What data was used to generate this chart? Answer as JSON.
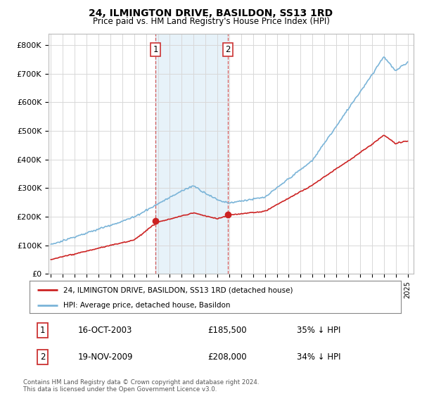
{
  "title": "24, ILMINGTON DRIVE, BASILDON, SS13 1RD",
  "subtitle": "Price paid vs. HM Land Registry's House Price Index (HPI)",
  "bg_color": "#ffffff",
  "plot_bg_color": "#ffffff",
  "grid_color": "#d8d8d8",
  "hpi_color": "#7ab4d8",
  "price_color": "#cc2222",
  "sale1_date": 2003.79,
  "sale1_price": 185500,
  "sale2_date": 2009.88,
  "sale2_price": 208000,
  "ylim": [
    0,
    840000
  ],
  "yticks": [
    0,
    100000,
    200000,
    300000,
    400000,
    500000,
    600000,
    700000,
    800000
  ],
  "ytick_labels": [
    "£0",
    "£100K",
    "£200K",
    "£300K",
    "£400K",
    "£500K",
    "£600K",
    "£700K",
    "£800K"
  ],
  "xmin": 1994.8,
  "xmax": 2025.5,
  "legend_line1": "24, ILMINGTON DRIVE, BASILDON, SS13 1RD (detached house)",
  "legend_line2": "HPI: Average price, detached house, Basildon",
  "footnote1": "Contains HM Land Registry data © Crown copyright and database right 2024.",
  "footnote2": "This data is licensed under the Open Government Licence v3.0.",
  "table_row1_num": "1",
  "table_row1_date": "16-OCT-2003",
  "table_row1_price": "£185,500",
  "table_row1_hpi": "35% ↓ HPI",
  "table_row2_num": "2",
  "table_row2_date": "19-NOV-2009",
  "table_row2_price": "£208,000",
  "table_row2_hpi": "34% ↓ HPI"
}
